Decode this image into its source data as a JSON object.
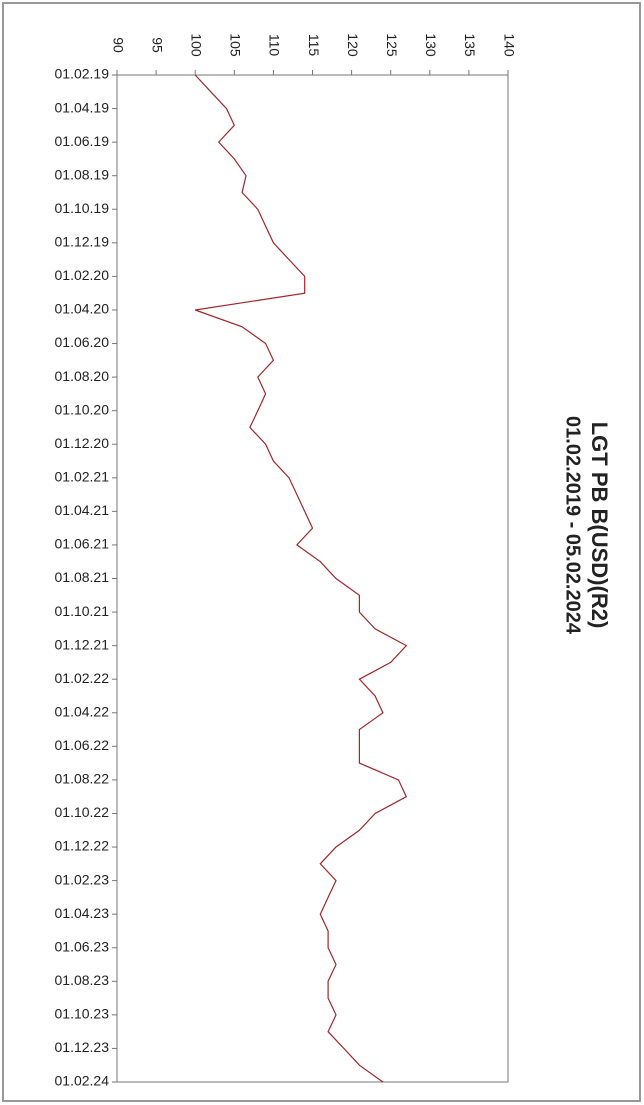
{
  "chart_data": {
    "type": "line",
    "title": "LGT PB B(USD)(R2)",
    "subtitle": "01.02.2019 - 05.02.2024",
    "value_axis": "top",
    "categories": [
      "01.02.19",
      null,
      "01.04.19",
      null,
      "01.06.19",
      null,
      "01.08.19",
      null,
      "01.10.19",
      null,
      "01.12.19",
      null,
      "01.02.20",
      null,
      "01.04.20",
      null,
      "01.06.20",
      null,
      "01.08.20",
      null,
      "01.10.20",
      null,
      "01.12.20",
      null,
      "01.02.21",
      null,
      "01.04.21",
      null,
      "01.06.21",
      null,
      "01.08.21",
      null,
      "01.10.21",
      null,
      "01.12.21",
      null,
      "01.02.22",
      null,
      "01.04.22",
      null,
      "01.06.22",
      null,
      "01.08.22",
      null,
      "01.10.22",
      null,
      "01.12.22",
      null,
      "01.02.23",
      null,
      "01.04.23",
      null,
      "01.06.23",
      null,
      "01.08.23",
      null,
      "01.10.23",
      null,
      "01.12.23",
      null,
      "01.02.24"
    ],
    "values": [
      100,
      102,
      104,
      105,
      103,
      105,
      106.5,
      106,
      108,
      109,
      110,
      112,
      114,
      114,
      100,
      106,
      109,
      110,
      108,
      109,
      108,
      107,
      109,
      110,
      112,
      113,
      114,
      115,
      113,
      116,
      118,
      121,
      121,
      123,
      127,
      125,
      121,
      123,
      124,
      121,
      121,
      121,
      126,
      127,
      123,
      121,
      118,
      116,
      118,
      117,
      116,
      117,
      117,
      118,
      117,
      117,
      118,
      117,
      119,
      121,
      124
    ],
    "color": "#a3262b",
    "ylim": [
      90,
      140
    ],
    "yticks": [
      90,
      95,
      100,
      105,
      110,
      115,
      120,
      125,
      130,
      135,
      140
    ]
  }
}
